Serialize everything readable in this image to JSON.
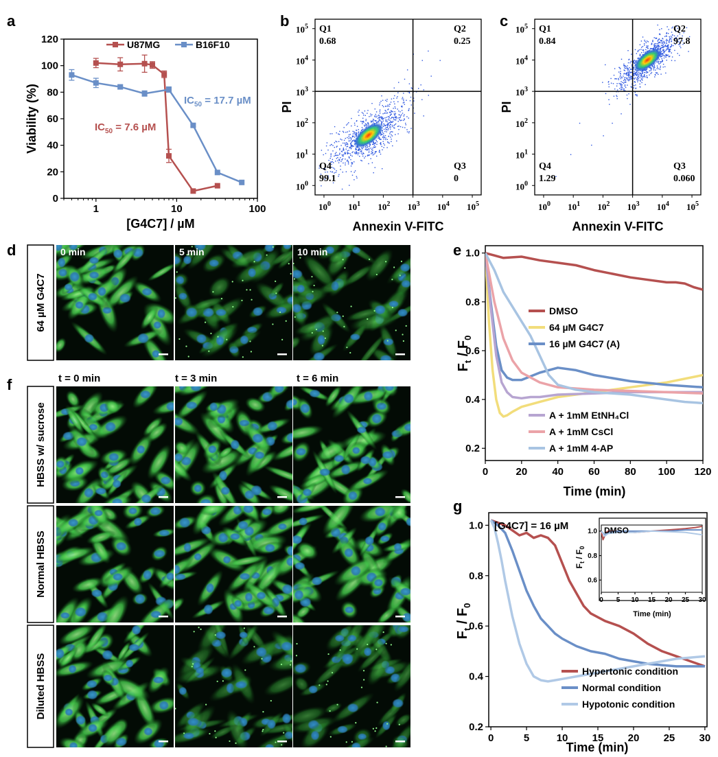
{
  "panel_letters": [
    "a",
    "b",
    "c",
    "d",
    "e",
    "f",
    "g"
  ],
  "chart_data": [
    {
      "id": "a",
      "type": "line",
      "xscale": "log",
      "xlabel": "[G4C7] / µM",
      "ylabel": "Viability (%)",
      "xlim": [
        0.4,
        100
      ],
      "ylim": [
        0,
        120
      ],
      "xticks": [
        "1",
        "10",
        "100"
      ],
      "yticks": [
        "0",
        "20",
        "40",
        "60",
        "80",
        "100",
        "120"
      ],
      "legend_position": "top",
      "series": [
        {
          "name": "U87MG",
          "color": "#b5504f",
          "marker": "square",
          "x": [
            1,
            2,
            4,
            5,
            7,
            8,
            16,
            32
          ],
          "y": [
            102,
            101,
            101.5,
            100.5,
            93.5,
            32,
            5.5,
            9.5
          ],
          "err": [
            3.5,
            5,
            6.5,
            2.5,
            2.5,
            5,
            0,
            0
          ]
        },
        {
          "name": "B16F10",
          "color": "#6a8fc7",
          "marker": "square",
          "x": [
            0.5,
            1,
            2,
            4,
            8,
            16,
            32,
            64
          ],
          "y": [
            93,
            87,
            84,
            79,
            82,
            55,
            19.5,
            12
          ],
          "err": [
            4,
            3.5,
            1.5,
            2,
            2,
            1,
            0,
            0
          ]
        }
      ],
      "annotations": [
        {
          "sub": "50",
          "text": " = 7.6 µM",
          "color": "#b5504f"
        },
        {
          "sub": "50",
          "text": " = 17.7 µM",
          "color": "#6a8fc7"
        }
      ]
    },
    {
      "id": "b",
      "type": "scatter",
      "xlabel": "Annexin V-FITC",
      "ylabel": "PI",
      "quadrants": [
        {
          "name": "Q1",
          "value": "0.68"
        },
        {
          "name": "Q2",
          "value": "0.25"
        },
        {
          "name": "Q3",
          "value": "0"
        },
        {
          "name": "Q4",
          "value": "99.1"
        }
      ],
      "population_center": [
        1.5,
        1.6
      ]
    },
    {
      "id": "c",
      "type": "scatter",
      "xlabel": "Annexin V-FITC",
      "ylabel": "PI",
      "quadrants": [
        {
          "name": "Q1",
          "value": "0.84"
        },
        {
          "name": "Q2",
          "value": "97.8"
        },
        {
          "name": "Q3",
          "value": "0.060"
        },
        {
          "name": "Q4",
          "value": "1.29"
        }
      ],
      "population_center": [
        3.5,
        4.0
      ]
    },
    {
      "id": "e",
      "type": "line",
      "xlabel": "Time (min)",
      "ylabel": "F",
      "ylabel_sub_t": "t",
      "ylabel_slash": " / F",
      "ylabel_sub_0": "0",
      "xlim": [
        0,
        120
      ],
      "ylim": [
        0.15,
        1.03
      ],
      "xticks": [
        "0",
        "20",
        "40",
        "60",
        "80",
        "100",
        "120"
      ],
      "yticks": [
        "0.2",
        "0.4",
        "0.6",
        "0.8",
        "1.0"
      ],
      "series": [
        {
          "name": "DMSO",
          "color": "#b5504f",
          "x": [
            0,
            5,
            10,
            20,
            30,
            40,
            50,
            60,
            70,
            80,
            90,
            100,
            105,
            110,
            115,
            120
          ],
          "y": [
            1.0,
            0.99,
            0.98,
            0.985,
            0.97,
            0.96,
            0.95,
            0.93,
            0.915,
            0.9,
            0.89,
            0.88,
            0.88,
            0.875,
            0.86,
            0.85
          ]
        },
        {
          "name": "64 µM G4C7",
          "color": "#f2dd7b",
          "x": [
            0,
            2,
            4,
            6,
            8,
            10,
            12,
            15,
            20,
            30,
            40,
            60,
            80,
            100,
            120
          ],
          "y": [
            1.0,
            0.72,
            0.52,
            0.4,
            0.345,
            0.33,
            0.335,
            0.35,
            0.37,
            0.39,
            0.41,
            0.43,
            0.45,
            0.47,
            0.5
          ]
        },
        {
          "name": "16 µM G4C7 (A)",
          "color": "#6a8fc7",
          "x": [
            0,
            3,
            6,
            9,
            12,
            15,
            20,
            30,
            40,
            50,
            60,
            80,
            100,
            120
          ],
          "y": [
            1.0,
            0.8,
            0.62,
            0.52,
            0.49,
            0.48,
            0.48,
            0.51,
            0.53,
            0.52,
            0.5,
            0.475,
            0.46,
            0.45
          ]
        },
        {
          "name": "A + 1mM EtNH₄Cl",
          "color": "#b7a5d1",
          "x": [
            0,
            3,
            6,
            9,
            12,
            15,
            20,
            25,
            30,
            40,
            60,
            80,
            100,
            120
          ],
          "y": [
            1.0,
            0.78,
            0.58,
            0.47,
            0.43,
            0.41,
            0.405,
            0.41,
            0.41,
            0.42,
            0.425,
            0.43,
            0.43,
            0.43
          ]
        },
        {
          "name": "A + 1mM CsCl",
          "color": "#eba3a8",
          "x": [
            0,
            5,
            10,
            15,
            20,
            25,
            30,
            40,
            60,
            80,
            100,
            120
          ],
          "y": [
            1.0,
            0.8,
            0.65,
            0.56,
            0.51,
            0.49,
            0.47,
            0.45,
            0.44,
            0.435,
            0.43,
            0.425
          ]
        },
        {
          "name": "A + 1mM 4-AP",
          "color": "#a8c4e2",
          "x": [
            0,
            5,
            10,
            15,
            20,
            25,
            30,
            35,
            40,
            50,
            60,
            80,
            100,
            110,
            120
          ],
          "y": [
            1.0,
            0.93,
            0.84,
            0.78,
            0.72,
            0.66,
            0.58,
            0.5,
            0.46,
            0.44,
            0.43,
            0.42,
            0.4,
            0.39,
            0.385
          ]
        }
      ]
    },
    {
      "id": "g",
      "type": "line",
      "title": "[G4C7] = 16 µM",
      "xlabel": "Time (min)",
      "ylabel": "F",
      "ylabel_sub_t": "t",
      "ylabel_slash": " / F",
      "ylabel_sub_0": "0",
      "xlim": [
        -0.3,
        30.3
      ],
      "ylim": [
        0.2,
        1.05
      ],
      "xticks": [
        "0",
        "5",
        "10",
        "15",
        "20",
        "25",
        "30"
      ],
      "yticks": [
        "0.2",
        "0.4",
        "0.6",
        "0.8",
        "1.0"
      ],
      "series": [
        {
          "name": "Hypertonic condition",
          "color": "#b5504f",
          "x": [
            0,
            1,
            2,
            3,
            4,
            5,
            6,
            7,
            8,
            9,
            10,
            11,
            12,
            13,
            14,
            16,
            18,
            20,
            22,
            24,
            26,
            28,
            30
          ],
          "y": [
            1.02,
            1.01,
            1.0,
            0.98,
            0.96,
            0.97,
            0.95,
            0.96,
            0.95,
            0.92,
            0.85,
            0.78,
            0.73,
            0.68,
            0.65,
            0.62,
            0.6,
            0.57,
            0.53,
            0.5,
            0.48,
            0.46,
            0.44
          ]
        },
        {
          "name": "Normal condition",
          "color": "#6a8fc7",
          "x": [
            0,
            1,
            2,
            3,
            4,
            5,
            6,
            7,
            8,
            9,
            10,
            12,
            14,
            16,
            18,
            20,
            22,
            24,
            26,
            28,
            30
          ],
          "y": [
            1.02,
            1.0,
            0.97,
            0.9,
            0.82,
            0.74,
            0.68,
            0.63,
            0.6,
            0.57,
            0.55,
            0.52,
            0.5,
            0.49,
            0.47,
            0.46,
            0.45,
            0.445,
            0.44,
            0.44,
            0.44
          ]
        },
        {
          "name": "Hypotonic condition",
          "color": "#b0c9e6",
          "x": [
            0,
            0.5,
            1,
            1.5,
            2,
            3,
            4,
            5,
            6,
            7,
            8,
            9,
            10,
            12,
            14,
            16,
            18,
            20,
            22,
            24,
            26,
            28,
            30
          ],
          "y": [
            1.02,
            0.99,
            0.93,
            0.86,
            0.78,
            0.64,
            0.53,
            0.45,
            0.4,
            0.385,
            0.38,
            0.385,
            0.39,
            0.4,
            0.41,
            0.42,
            0.43,
            0.44,
            0.45,
            0.46,
            0.47,
            0.475,
            0.48
          ]
        }
      ],
      "inset": {
        "title": "DMSO",
        "xlabel": "Time (min)",
        "ylabel": "F",
        "ylabel_sub_t": "t",
        "ylabel_slash": " / F",
        "ylabel_sub_0": "0",
        "xlim": [
          0,
          30
        ],
        "ylim": [
          0.5,
          1.05
        ],
        "xticks": [
          "0",
          "5",
          "10",
          "15",
          "20",
          "25",
          "30"
        ],
        "yticks": [
          "0.6",
          "0.8",
          "1.0"
        ],
        "series": [
          {
            "color": "#b5504f",
            "x": [
              0,
              0.5,
              1,
              1.5,
              2,
              5,
              10,
              15,
              20,
              25,
              28,
              30
            ],
            "y": [
              1.0,
              0.93,
              0.96,
              0.99,
              1.0,
              1.0,
              0.99,
              1.0,
              1.01,
              1.02,
              1.03,
              1.04
            ]
          },
          {
            "color": "#6a8fc7",
            "x": [
              0,
              1,
              2,
              5,
              10,
              15,
              20,
              25,
              30
            ],
            "y": [
              1.0,
              0.97,
              0.99,
              1.0,
              1.0,
              1.0,
              1.0,
              1.01,
              1.01
            ]
          },
          {
            "color": "#b0c9e6",
            "x": [
              0,
              1,
              2,
              5,
              10,
              15,
              20,
              25,
              30
            ],
            "y": [
              1.0,
              0.96,
              0.98,
              0.99,
              0.99,
              1.0,
              0.995,
              0.99,
              0.97
            ]
          }
        ]
      }
    }
  ],
  "microscopy_d": {
    "row_label": "64 µM G4C7",
    "frames": [
      "0 min",
      "5 min",
      "10 min"
    ]
  },
  "microscopy_f": {
    "column_labels": [
      "t = 0 min",
      "t = 3 min",
      "t = 6 min"
    ],
    "row_labels": [
      "HBSS w/ sucrose",
      "Normal HBSS",
      "Diluted HBSS"
    ]
  }
}
